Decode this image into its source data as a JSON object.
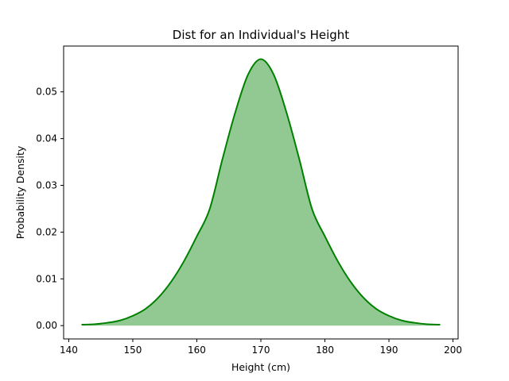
{
  "chart_data": {
    "type": "area",
    "title": "Dist for an Individual's Height",
    "xlabel": "Height (cm)",
    "ylabel": "Probability Density",
    "xlim": [
      139.2,
      200.8
    ],
    "ylim": [
      -0.00285,
      0.0598
    ],
    "xticks": [
      140,
      150,
      160,
      170,
      180,
      190,
      200
    ],
    "xtick_labels": [
      "140",
      "150",
      "160",
      "170",
      "180",
      "190",
      "200"
    ],
    "yticks": [
      0.0,
      0.01,
      0.02,
      0.03,
      0.04,
      0.05
    ],
    "ytick_labels": [
      "0.00",
      "0.01",
      "0.02",
      "0.03",
      "0.04",
      "0.05"
    ],
    "series": [
      {
        "x": [
          142,
          144,
          146,
          148,
          150,
          152,
          154,
          156,
          158,
          160,
          162,
          164,
          166,
          168,
          170,
          172,
          174,
          176,
          178,
          180,
          182,
          184,
          186,
          188,
          190,
          192,
          194,
          196,
          198
        ],
        "y": [
          0.0002,
          0.0003,
          0.0006,
          0.0011,
          0.0021,
          0.0036,
          0.006,
          0.0094,
          0.0138,
          0.0191,
          0.0249,
          0.0356,
          0.0456,
          0.0537,
          0.057,
          0.0537,
          0.0456,
          0.0356,
          0.0249,
          0.0191,
          0.0138,
          0.0094,
          0.006,
          0.0036,
          0.0021,
          0.0011,
          0.0006,
          0.0003,
          0.0002
        ]
      }
    ],
    "line_color": "#008000",
    "fill_color": "#92c992",
    "grid": false,
    "legend": "none"
  }
}
